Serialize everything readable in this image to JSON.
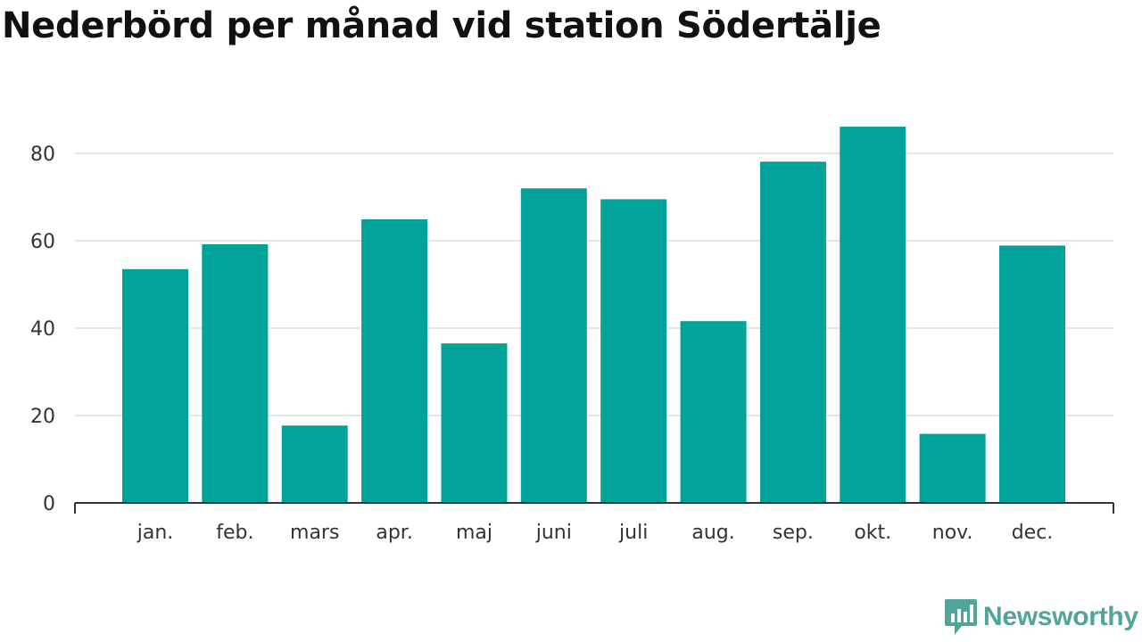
{
  "title": "Nederbörd per månad vid station Södertälje",
  "brand": {
    "name": "Newsworthy",
    "color": "#4fa59a"
  },
  "chart_data": {
    "type": "bar",
    "title": "Nederbörd per månad vid station Södertälje",
    "xlabel": "",
    "ylabel": "",
    "categories": [
      "jan.",
      "feb.",
      "mars",
      "apr.",
      "maj",
      "juni",
      "juli",
      "aug.",
      "sep.",
      "okt.",
      "nov.",
      "dec."
    ],
    "values": [
      53.5,
      59.2,
      17.7,
      64.9,
      36.5,
      72.0,
      69.5,
      41.6,
      78.1,
      86.1,
      15.8,
      58.9
    ],
    "ylim": [
      0,
      90
    ],
    "yticks": [
      0,
      20,
      40,
      60,
      80
    ],
    "grid": true,
    "legend": "none",
    "bar_color": "#00a399"
  }
}
